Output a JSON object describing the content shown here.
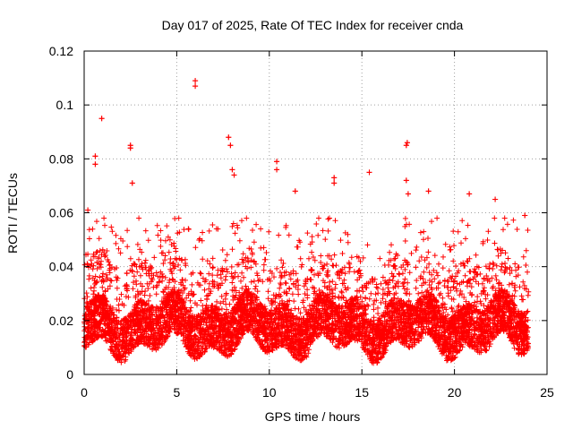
{
  "chart_data": {
    "type": "scatter",
    "title": "Day 017 of 2025, Rate Of TEC Index for receiver cnda",
    "xlabel": "GPS time / hours",
    "ylabel": "ROTI / TECUs",
    "xlim": [
      0,
      25
    ],
    "ylim": [
      0,
      0.12
    ],
    "x_ticks": [
      0,
      5,
      10,
      15,
      20,
      25
    ],
    "x_tick_labels": [
      "0",
      "5",
      "10",
      "15",
      "20",
      "25"
    ],
    "y_ticks": [
      0,
      0.02,
      0.04,
      0.06,
      0.08,
      0.1,
      0.12
    ],
    "y_tick_labels": [
      "0",
      "0.02",
      "0.04",
      "0.06",
      "0.08",
      "0.1",
      "0.12"
    ],
    "grid": true,
    "marker": "+",
    "color": "#ff0000",
    "series": [
      {
        "name": "ROTI",
        "approx_point_count": 8000,
        "x_range": [
          0,
          24
        ],
        "typical_range": [
          0.005,
          0.035
        ],
        "notable_points": [
          {
            "x": 0.2,
            "y": 0.061
          },
          {
            "x": 0.6,
            "y": 0.081
          },
          {
            "x": 0.6,
            "y": 0.078
          },
          {
            "x": 0.95,
            "y": 0.095
          },
          {
            "x": 2.5,
            "y": 0.085
          },
          {
            "x": 2.5,
            "y": 0.084
          },
          {
            "x": 2.6,
            "y": 0.071
          },
          {
            "x": 6.0,
            "y": 0.109
          },
          {
            "x": 6.0,
            "y": 0.107
          },
          {
            "x": 7.8,
            "y": 0.088
          },
          {
            "x": 7.9,
            "y": 0.085
          },
          {
            "x": 8.0,
            "y": 0.076
          },
          {
            "x": 8.1,
            "y": 0.074
          },
          {
            "x": 10.4,
            "y": 0.079
          },
          {
            "x": 10.4,
            "y": 0.076
          },
          {
            "x": 11.4,
            "y": 0.068
          },
          {
            "x": 13.5,
            "y": 0.073
          },
          {
            "x": 13.5,
            "y": 0.071
          },
          {
            "x": 15.4,
            "y": 0.075
          },
          {
            "x": 17.4,
            "y": 0.085
          },
          {
            "x": 17.45,
            "y": 0.086
          },
          {
            "x": 17.4,
            "y": 0.072
          },
          {
            "x": 17.5,
            "y": 0.067
          },
          {
            "x": 18.6,
            "y": 0.068
          },
          {
            "x": 20.8,
            "y": 0.067
          },
          {
            "x": 22.2,
            "y": 0.065
          },
          {
            "x": 23.8,
            "y": 0.059
          }
        ]
      }
    ]
  }
}
